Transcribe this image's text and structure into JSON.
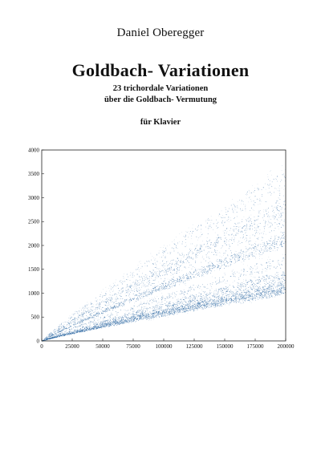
{
  "cover": {
    "author": "Daniel Oberegger",
    "title": "Goldbach- Variationen",
    "subtitle_line1": "23 trichordale Variationen",
    "subtitle_line2": "über die Goldbach- Vermutung",
    "instrument": "für Klavier"
  },
  "chart_data": {
    "type": "scatter",
    "title": "",
    "xlabel": "",
    "ylabel": "",
    "xlim": [
      0,
      200000
    ],
    "ylim": [
      0,
      4000
    ],
    "x_ticks": [
      "0",
      "25000",
      "50000",
      "75000",
      "100000",
      "125000",
      "150000",
      "175000",
      "200000"
    ],
    "y_ticks": [
      "0",
      "500",
      "1000",
      "1500",
      "2000",
      "2500",
      "3000",
      "3500",
      "4000"
    ],
    "grid": false,
    "legend": "none",
    "point_color": "#1f5e9c",
    "bands_at_x_max": [
      {
        "y": 1050,
        "density": "high"
      },
      {
        "y": 1150,
        "density": "high"
      },
      {
        "y": 1250,
        "density": "medium"
      },
      {
        "y": 1400,
        "density": "medium"
      },
      {
        "y": 1700,
        "density": "low"
      },
      {
        "y": 2150,
        "density": "high"
      },
      {
        "y": 2550,
        "density": "low"
      },
      {
        "y": 2850,
        "density": "medium"
      },
      {
        "y": 3400,
        "density": "low"
      }
    ]
  }
}
